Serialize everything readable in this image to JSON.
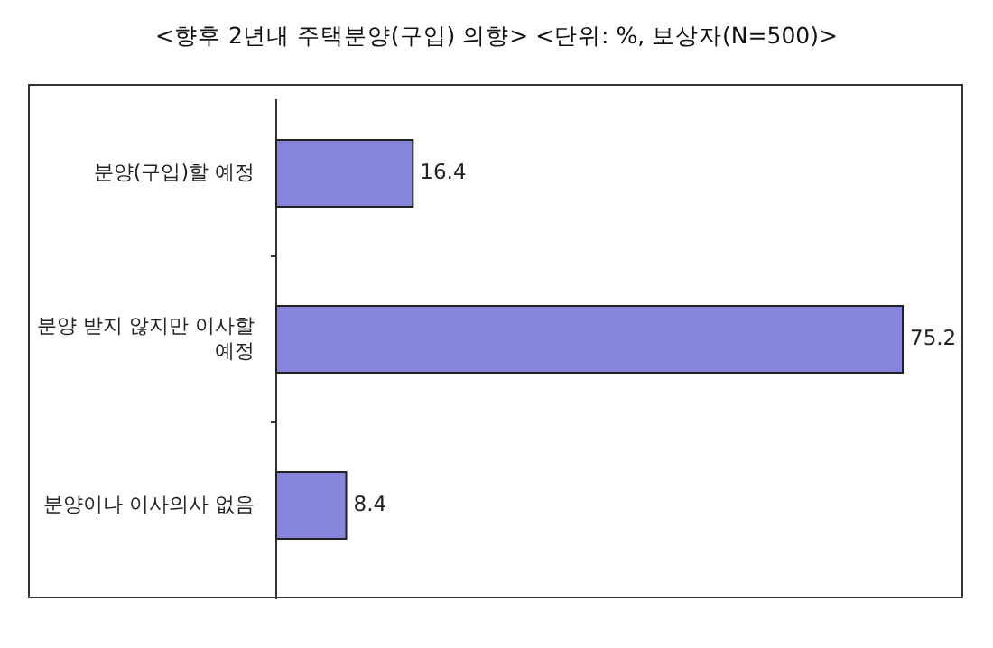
{
  "chart_data": {
    "type": "bar",
    "orientation": "horizontal",
    "title": "<향후 2년내 주택분양(구입) 의향> <단위: %, 보상자(N=500)>",
    "categories": [
      "분양(구입)할 예정",
      "분양 받지 않지만 이사할 예정",
      "분양이나 이사의사 없음"
    ],
    "values": [
      16.4,
      75.2,
      8.4
    ],
    "color": "#8585dc",
    "data_labels": true
  }
}
